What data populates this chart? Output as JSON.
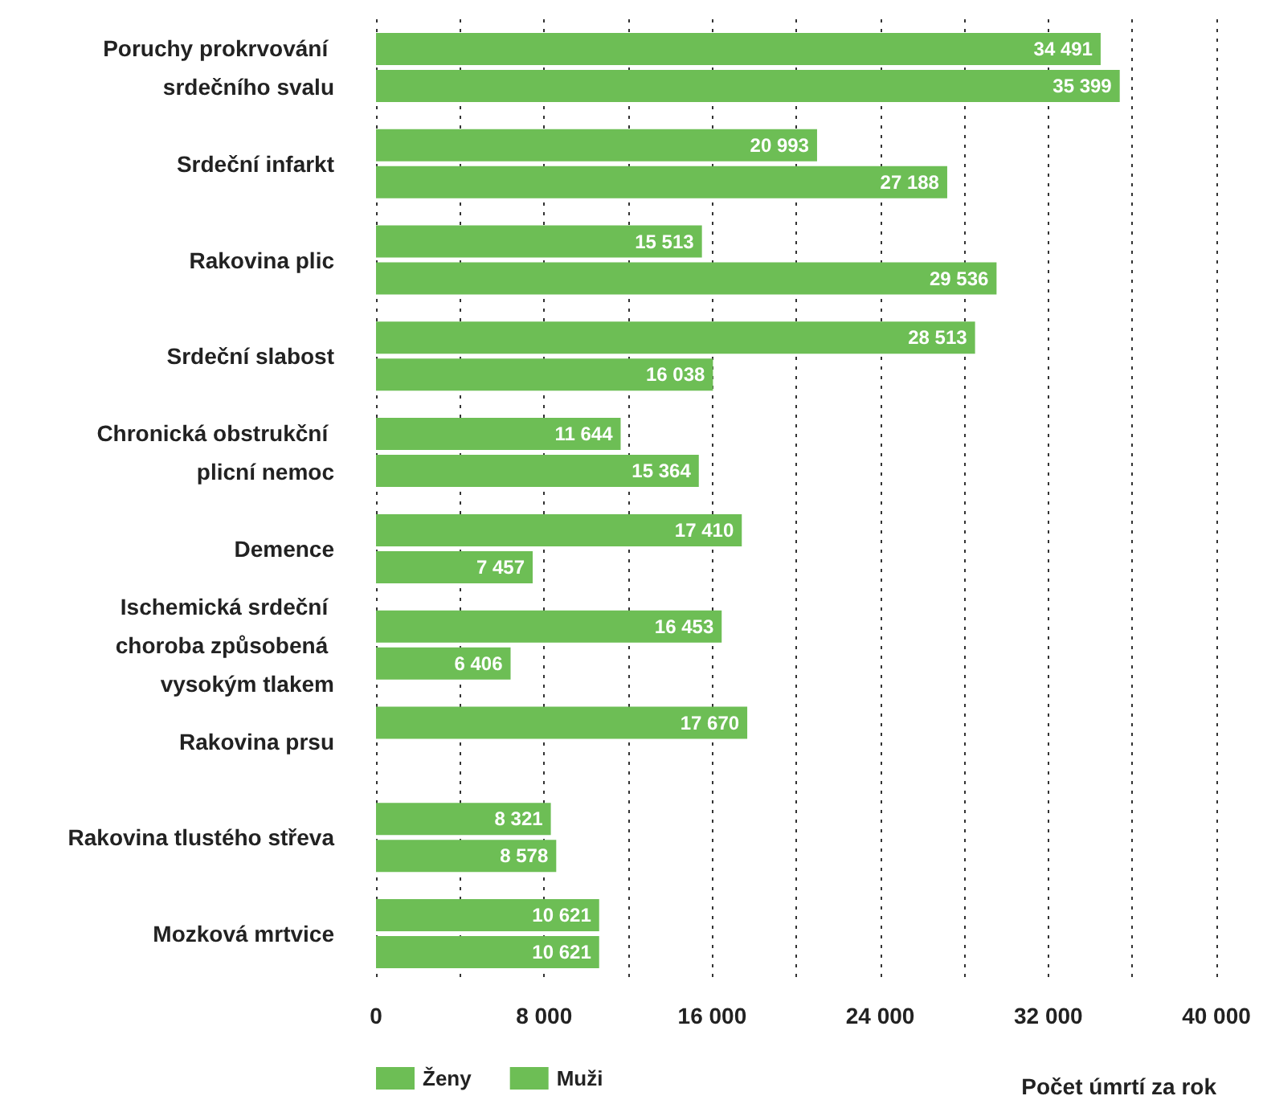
{
  "chart_data": {
    "type": "bar",
    "orientation": "horizontal",
    "xlabel": "Počet úmrtí za rok",
    "categories": [
      "Poruchy prokrvování srdečního svalu",
      "Srdeční infarkt",
      "Rakovina plic",
      "Srdeční slabost",
      "Chronická obstrukční plicní nemoc",
      "Demence",
      "Ischemická srdeční choroba způsobená vysokým tlakem",
      "Rakovina prsu",
      "Rakovina tlustého střeva",
      "Mozková mrtvice"
    ],
    "series": [
      {
        "name": "Ženy",
        "color": "#6dbe55",
        "values": [
          34491,
          20993,
          15513,
          28513,
          11644,
          17410,
          16453,
          17670,
          8321,
          10621
        ],
        "value_labels": [
          "34 491",
          "20 993",
          "15 513",
          "28 513",
          "11 644",
          "17 410",
          "16 453",
          "17 670",
          "8 321",
          "10 621"
        ]
      },
      {
        "name": "Muži",
        "color": "#6dbe55",
        "values": [
          35399,
          27188,
          29536,
          16038,
          15364,
          7457,
          6406,
          null,
          8578,
          10621
        ],
        "value_labels": [
          "35 399",
          "27 188",
          "29 536",
          "16 038",
          "15 364",
          "7 457",
          "6 406",
          null,
          "8 578",
          "10 621"
        ]
      }
    ],
    "xlim": [
      0,
      40000
    ],
    "xticks": [
      0,
      {
        "value": 4000,
        "label": null
      },
      {
        "value": 8000,
        "label": "8 000"
      },
      {
        "value": 12000,
        "label": null
      },
      {
        "value": 16000,
        "label": "16 000"
      },
      {
        "value": 20000,
        "label": null
      },
      {
        "value": 24000,
        "label": "24 000"
      },
      {
        "value": 28000,
        "label": null
      },
      {
        "value": 32000,
        "label": "32 000"
      },
      {
        "value": 36000,
        "label": null
      },
      {
        "value": 40000,
        "label": "40 000"
      }
    ],
    "grid": "x",
    "legend": "bottom left"
  }
}
